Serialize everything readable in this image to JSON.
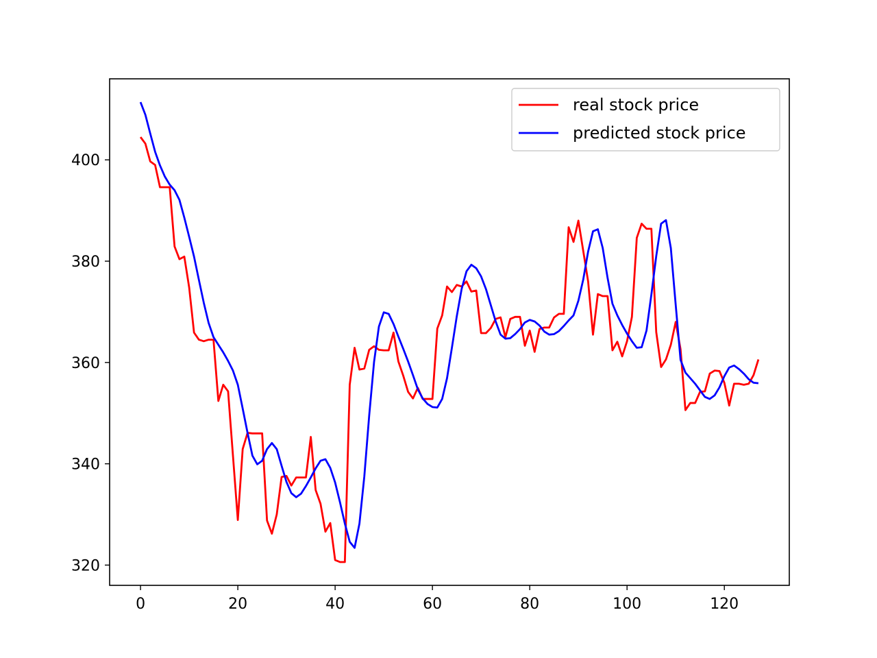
{
  "chart_data": {
    "type": "line",
    "xlim": [
      -6.35,
      133.35
    ],
    "ylim": [
      316.0,
      416.0
    ],
    "grid": false,
    "legend_placement": "top-right",
    "x_ticks": [
      0,
      20,
      40,
      60,
      80,
      100,
      120
    ],
    "y_ticks": [
      320,
      340,
      360,
      380,
      400
    ],
    "series": [
      {
        "name": "real stock price",
        "color": "#ff0000",
        "x_start": 0,
        "values": [
          404.5,
          403.2,
          399.7,
          399.0,
          394.6,
          394.6,
          394.6,
          382.9,
          380.4,
          380.9,
          374.8,
          365.9,
          364.5,
          364.2,
          364.5,
          364.5,
          352.4,
          355.6,
          354.3,
          341.6,
          328.9,
          342.9,
          346.1,
          346.0,
          346.0,
          346.0,
          328.8,
          326.2,
          330.0,
          337.4,
          337.6,
          335.7,
          337.3,
          337.3,
          337.3,
          345.3,
          334.8,
          332.1,
          326.6,
          328.3,
          321.0,
          320.6,
          320.6,
          355.6,
          362.9,
          358.6,
          358.8,
          362.5,
          363.2,
          362.5,
          362.4,
          362.4,
          365.9,
          360.2,
          357.4,
          354.2,
          352.9,
          355.0,
          352.8,
          352.8,
          352.8,
          366.7,
          369.3,
          375.0,
          373.9,
          375.3,
          375.0,
          376.0,
          374.0,
          374.2,
          365.8,
          365.8,
          366.8,
          368.6,
          368.9,
          365.0,
          368.6,
          369.0,
          369.0,
          363.3,
          366.3,
          362.1,
          366.6,
          366.9,
          366.9,
          368.9,
          369.6,
          369.6,
          386.7,
          383.8,
          388.0,
          382.0,
          376.0,
          365.5,
          373.5,
          373.1,
          373.1,
          362.4,
          364.1,
          361.2,
          364.2,
          369.0,
          384.6,
          387.4,
          386.4,
          386.4,
          366.0,
          359.1,
          360.6,
          363.5,
          368.0,
          362.6,
          350.6,
          352.0,
          352.0,
          354.2,
          354.3,
          357.8,
          358.4,
          358.3,
          356.0,
          351.5,
          355.8,
          355.8,
          355.6,
          355.8,
          357.5,
          360.6
        ]
      },
      {
        "name": "predicted stock price",
        "color": "#0000ff",
        "x_start": 0,
        "values": [
          411.4,
          408.9,
          405.2,
          401.6,
          398.9,
          396.7,
          395.1,
          394.0,
          392.1,
          388.6,
          384.8,
          380.9,
          376.3,
          371.8,
          367.8,
          365.0,
          363.5,
          362.0,
          360.3,
          358.4,
          355.6,
          350.9,
          346.1,
          341.6,
          339.9,
          340.6,
          342.9,
          344.1,
          342.9,
          339.6,
          336.4,
          334.2,
          333.4,
          334.1,
          335.6,
          337.3,
          339.1,
          340.6,
          340.9,
          339.2,
          336.3,
          332.4,
          328.2,
          324.6,
          323.4,
          328.2,
          337.5,
          349.5,
          360.1,
          367.1,
          369.9,
          369.6,
          367.6,
          365.1,
          362.7,
          360.2,
          357.5,
          354.7,
          352.9,
          351.8,
          351.2,
          351.1,
          352.8,
          356.9,
          362.9,
          369.1,
          374.5,
          378.0,
          379.3,
          378.6,
          377.0,
          374.5,
          371.3,
          368.1,
          365.5,
          364.7,
          364.8,
          365.6,
          366.6,
          367.9,
          368.4,
          368.1,
          367.3,
          366.1,
          365.5,
          365.6,
          366.2,
          367.2,
          368.3,
          369.3,
          372.2,
          376.4,
          381.9,
          385.9,
          386.3,
          382.6,
          376.7,
          371.6,
          369.3,
          367.4,
          365.7,
          364.2,
          362.9,
          363.0,
          366.3,
          373.4,
          381.0,
          387.4,
          388.1,
          382.6,
          371.4,
          360.5,
          358.0,
          356.9,
          355.8,
          354.5,
          353.2,
          352.8,
          353.5,
          355.1,
          357.3,
          359.0,
          359.4,
          358.7,
          357.8,
          356.7,
          356.0,
          355.9
        ]
      }
    ]
  }
}
